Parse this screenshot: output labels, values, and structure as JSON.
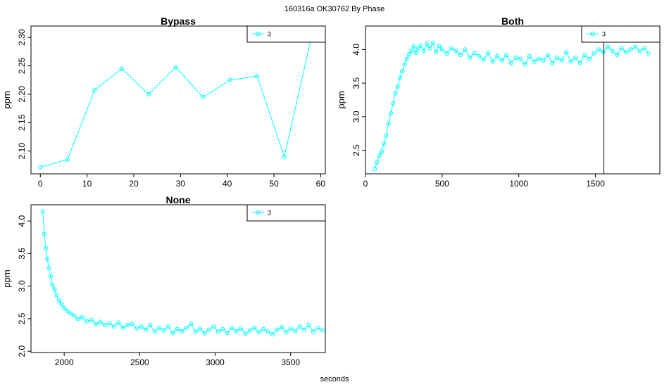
{
  "figure": {
    "title": "160316a    OK30762   By Phase",
    "xlabel": "seconds"
  },
  "chart_data": [
    {
      "type": "line",
      "title": "Bypass",
      "ylabel": "ppm",
      "xlim": [
        -2,
        61
      ],
      "ylim": [
        2.06,
        2.32
      ],
      "xticks": [
        0,
        10,
        20,
        30,
        40,
        50,
        60
      ],
      "yticks": [
        2.1,
        2.15,
        2.2,
        2.25,
        2.3
      ],
      "legend": [
        "3"
      ],
      "legend_position": "top-right",
      "color": "#00ffff",
      "marker": "circle",
      "x": [
        0,
        5.8,
        11.6,
        17.4,
        23.2,
        29.0,
        34.8,
        40.6,
        46.4,
        52.2,
        58.0
      ],
      "y": [
        2.072,
        2.085,
        2.207,
        2.245,
        2.2,
        2.248,
        2.195,
        2.225,
        2.232,
        2.09,
        2.3
      ]
    },
    {
      "type": "scatter",
      "title": "Both",
      "ylabel": "ppm",
      "xlim": [
        0,
        1920
      ],
      "ylim": [
        2.15,
        4.35
      ],
      "xticks": [
        0,
        500,
        1000,
        1500
      ],
      "yticks": [
        2.5,
        3.0,
        3.5,
        4.0
      ],
      "legend": [
        "3"
      ],
      "legend_position": "top-right",
      "color": "#00ffff",
      "marker": "circle",
      "vline_x": 1555,
      "x": [
        60,
        75,
        90,
        105,
        120,
        135,
        150,
        165,
        180,
        195,
        210,
        225,
        240,
        255,
        270,
        285,
        300,
        315,
        330,
        345,
        360,
        380,
        400,
        420,
        440,
        460,
        480,
        500,
        530,
        560,
        590,
        620,
        650,
        680,
        710,
        740,
        770,
        800,
        830,
        860,
        890,
        920,
        950,
        980,
        1010,
        1040,
        1070,
        1100,
        1130,
        1160,
        1190,
        1220,
        1250,
        1280,
        1310,
        1340,
        1370,
        1400,
        1430,
        1460,
        1490,
        1520,
        1550,
        1580,
        1610,
        1640,
        1670,
        1700,
        1730,
        1760,
        1790,
        1820,
        1845
      ],
      "y": [
        2.22,
        2.32,
        2.42,
        2.48,
        2.6,
        2.72,
        2.9,
        3.05,
        3.2,
        3.35,
        3.45,
        3.58,
        3.68,
        3.78,
        3.86,
        3.93,
        3.98,
        4.05,
        3.95,
        4.02,
        4.06,
        3.98,
        4.08,
        4.02,
        4.1,
        3.96,
        4.05,
        4.0,
        3.94,
        4.02,
        3.98,
        3.92,
        4.0,
        3.88,
        3.95,
        3.9,
        3.85,
        3.95,
        3.82,
        3.9,
        3.84,
        3.92,
        3.8,
        3.88,
        3.86,
        3.78,
        3.9,
        3.82,
        3.86,
        3.84,
        3.92,
        3.8,
        3.88,
        3.84,
        3.96,
        3.82,
        3.88,
        3.8,
        3.92,
        3.86,
        3.94,
        4.0,
        3.96,
        4.04,
        3.98,
        3.92,
        4.02,
        3.96,
        4.0,
        4.04,
        3.98,
        4.02,
        3.94
      ]
    },
    {
      "type": "scatter",
      "title": "None",
      "ylabel": "ppm",
      "xlim": [
        1780,
        3730
      ],
      "ylim": [
        1.98,
        4.25
      ],
      "xticks": [
        2000,
        2500,
        3000,
        3500
      ],
      "yticks": [
        2.0,
        2.5,
        3.0,
        3.5,
        4.0
      ],
      "legend": [
        "3"
      ],
      "legend_position": "top-right",
      "color": "#00ffff",
      "marker": "circle",
      "x": [
        1858,
        1868,
        1878,
        1888,
        1898,
        1910,
        1922,
        1936,
        1950,
        1966,
        1982,
        2000,
        2020,
        2040,
        2065,
        2090,
        2120,
        2150,
        2180,
        2210,
        2240,
        2270,
        2300,
        2330,
        2360,
        2390,
        2420,
        2450,
        2480,
        2510,
        2540,
        2570,
        2600,
        2630,
        2660,
        2690,
        2720,
        2750,
        2780,
        2810,
        2840,
        2870,
        2900,
        2930,
        2960,
        2990,
        3020,
        3050,
        3080,
        3110,
        3140,
        3170,
        3200,
        3230,
        3260,
        3290,
        3320,
        3350,
        3380,
        3410,
        3440,
        3470,
        3500,
        3530,
        3560,
        3590,
        3620,
        3650,
        3680,
        3710
      ],
      "y": [
        4.15,
        3.8,
        3.58,
        3.42,
        3.28,
        3.15,
        3.02,
        2.95,
        2.86,
        2.78,
        2.72,
        2.66,
        2.62,
        2.58,
        2.55,
        2.5,
        2.52,
        2.46,
        2.48,
        2.42,
        2.45,
        2.4,
        2.43,
        2.38,
        2.44,
        2.36,
        2.4,
        2.42,
        2.35,
        2.38,
        2.33,
        2.4,
        2.3,
        2.36,
        2.32,
        2.38,
        2.28,
        2.34,
        2.31,
        2.36,
        2.42,
        2.3,
        2.35,
        2.28,
        2.33,
        2.38,
        2.3,
        2.34,
        2.28,
        2.36,
        2.31,
        2.35,
        2.27,
        2.32,
        2.36,
        2.29,
        2.34,
        2.3,
        2.26,
        2.33,
        2.37,
        2.29,
        2.35,
        2.31,
        2.38,
        2.33,
        2.4,
        2.3,
        2.36,
        2.32
      ]
    }
  ]
}
